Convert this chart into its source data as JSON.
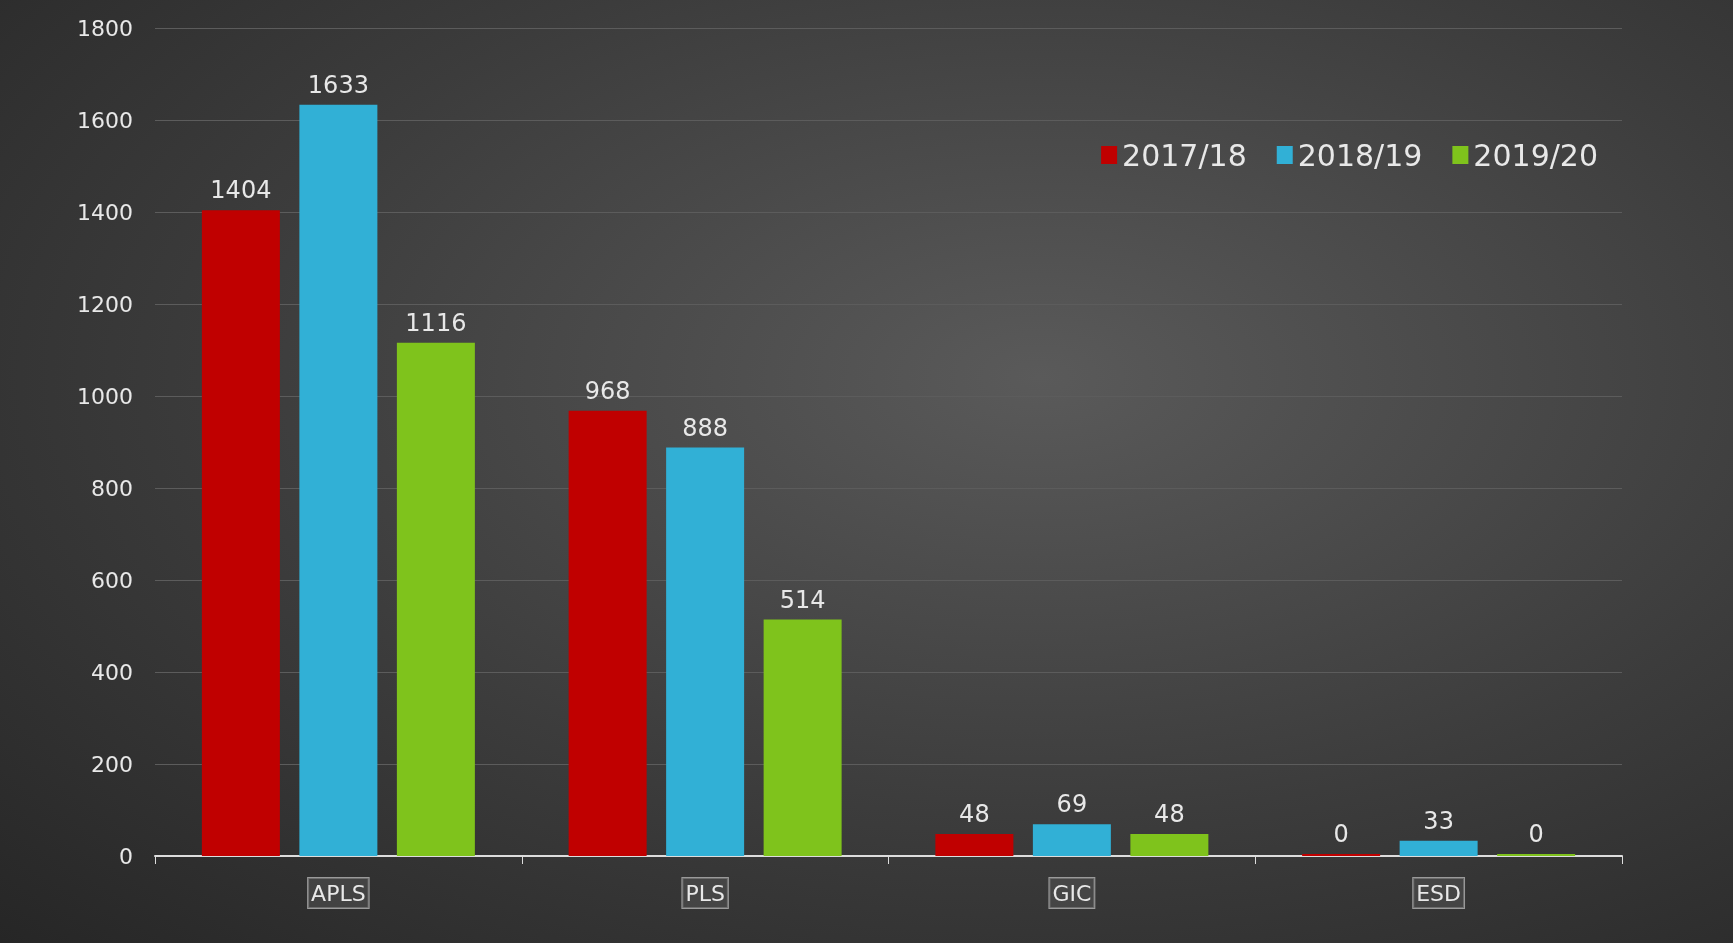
{
  "chart_data": {
    "type": "bar",
    "categories": [
      "APLS",
      "PLS",
      "GIC",
      "ESD"
    ],
    "series": [
      {
        "name": "2017/18",
        "color": "#c00000",
        "values": [
          1404,
          968,
          48,
          0
        ]
      },
      {
        "name": "2018/19",
        "color": "#31b0d6",
        "values": [
          1633,
          888,
          69,
          33
        ]
      },
      {
        "name": "2019/20",
        "color": "#7fc31c",
        "values": [
          1116,
          514,
          48,
          0
        ]
      }
    ],
    "ylim": [
      0,
      1800
    ],
    "yticks": [
      0,
      200,
      400,
      600,
      800,
      1000,
      1200,
      1400,
      1600,
      1800
    ],
    "grid": "y",
    "legend": "top right",
    "data_labels": true
  }
}
